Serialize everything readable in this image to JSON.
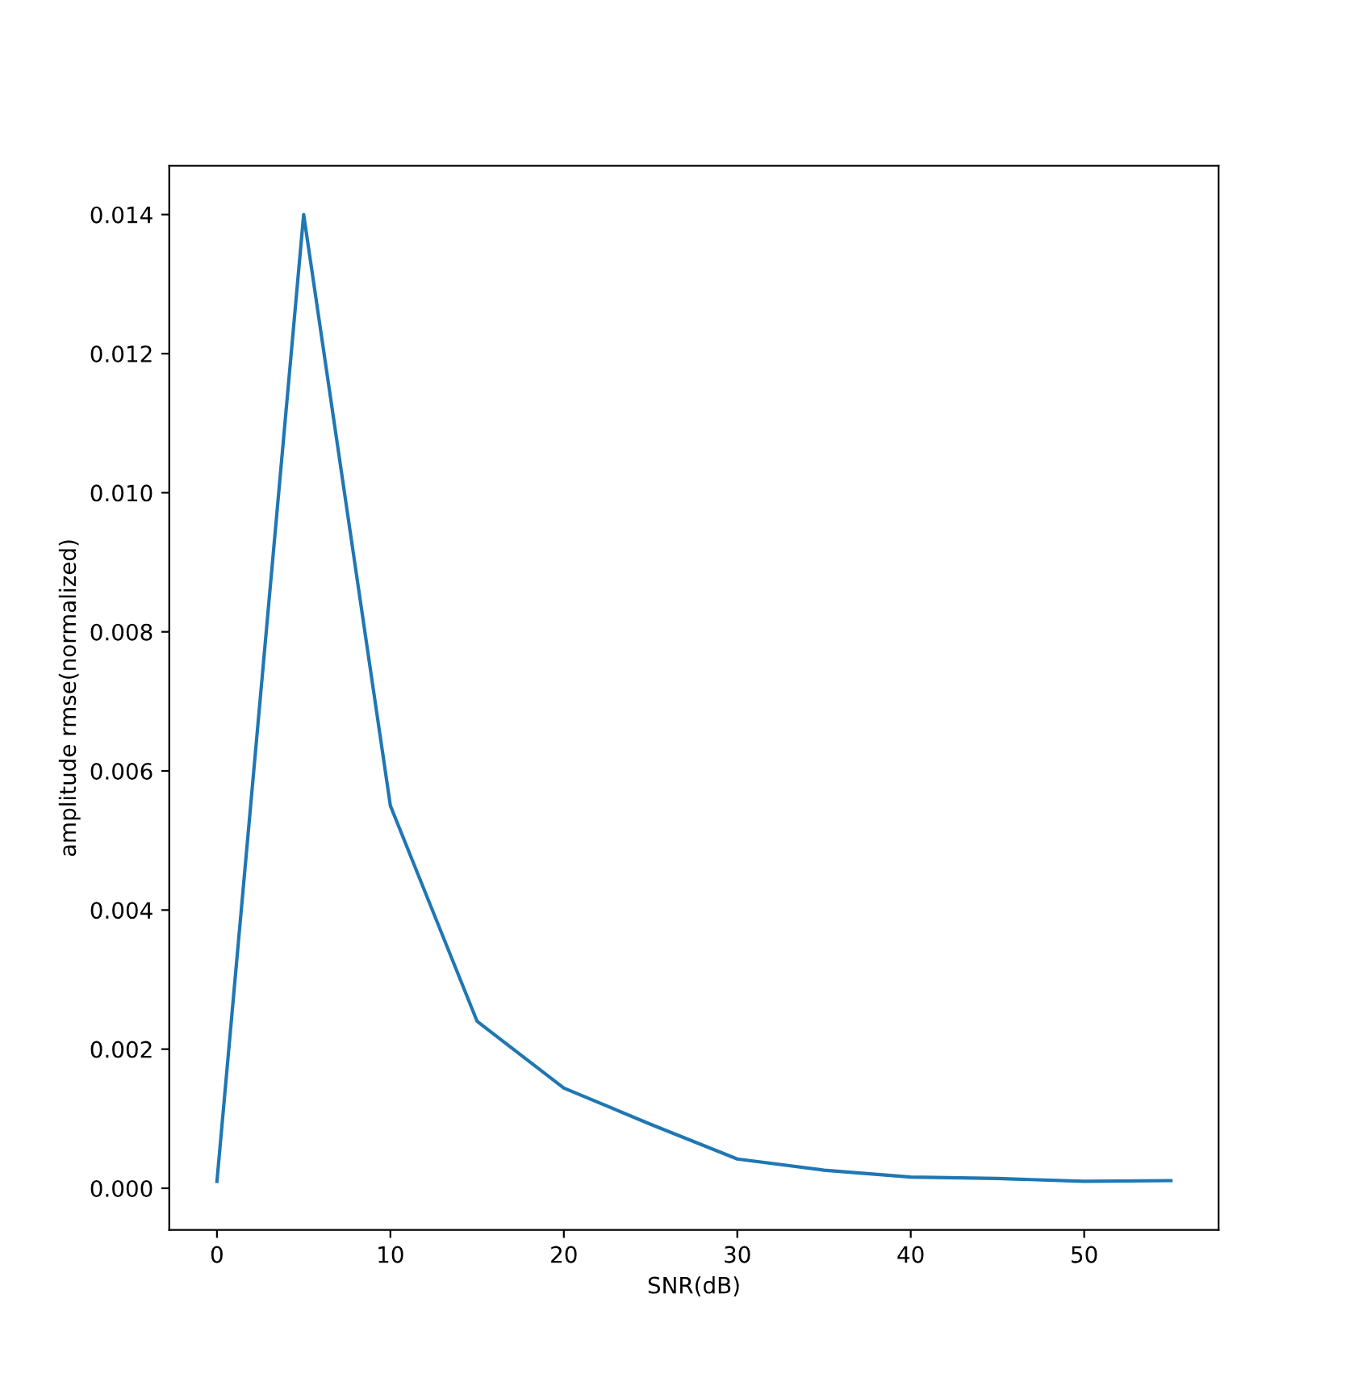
{
  "chart_data": {
    "type": "line",
    "xlabel": "SNR(dB)",
    "ylabel": "amplitude rmse(normalized)",
    "x": [
      0,
      5,
      10,
      15,
      20,
      25,
      30,
      35,
      40,
      45,
      50,
      55
    ],
    "series": [
      {
        "color": "#1f77b4",
        "values": [
          0.0001,
          0.014,
          0.0055,
          0.0024,
          0.00144,
          0.00092,
          0.00042,
          0.00026,
          0.00016,
          0.00014,
          0.0001,
          0.00011
        ]
      }
    ],
    "xlim": [
      -2.75,
      57.75
    ],
    "ylim": [
      -0.0006,
      0.0147
    ],
    "xticks": [
      0,
      10,
      20,
      30,
      40,
      50
    ],
    "yticks": [
      {
        "value": 0,
        "label": "0.000"
      },
      {
        "value": 0.002,
        "label": "0.002"
      },
      {
        "value": 0.004,
        "label": "0.004"
      },
      {
        "value": 0.006,
        "label": "0.006"
      },
      {
        "value": 0.008,
        "label": "0.008"
      },
      {
        "value": 0.01,
        "label": "0.010"
      },
      {
        "value": 0.012,
        "label": "0.012"
      },
      {
        "value": 0.014,
        "label": "0.014"
      }
    ],
    "grid": false,
    "legend": false
  }
}
